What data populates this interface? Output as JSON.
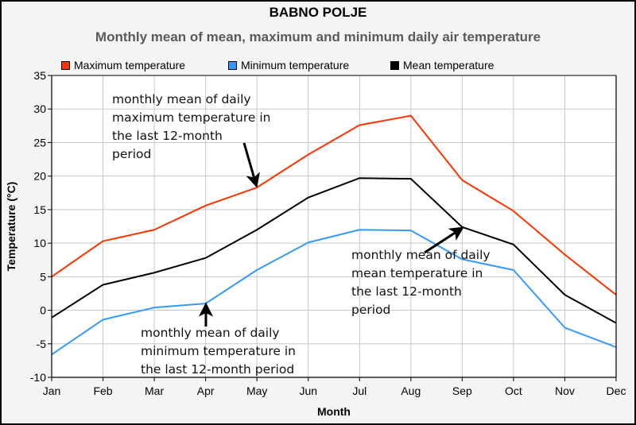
{
  "chart_data": {
    "type": "line",
    "title": "BABNO POLJE",
    "subtitle": "Monthly mean of mean, maximum and minimum daily air temperature",
    "xlabel": "Month",
    "ylabel": "Temperature (°C)",
    "categories": [
      "Jan",
      "Feb",
      "Mar",
      "Apr",
      "May",
      "Jun",
      "Jul",
      "Aug",
      "Sep",
      "Oct",
      "Nov",
      "Dec"
    ],
    "ylim": [
      -10,
      35
    ],
    "yticks": [
      -10,
      -5,
      0,
      5,
      10,
      15,
      20,
      25,
      30,
      35
    ],
    "grid": true,
    "legend_position": "top",
    "series": [
      {
        "name": "Maximum temperature",
        "color": "#ff3300",
        "values": [
          5.0,
          10.3,
          12.0,
          15.6,
          18.3,
          23.2,
          27.6,
          29.0,
          19.4,
          14.8,
          8.3,
          2.3
        ]
      },
      {
        "name": "Minimum temperature",
        "color": "#3399ff",
        "values": [
          -6.6,
          -1.4,
          0.4,
          1.0,
          6.0,
          10.1,
          12.0,
          11.9,
          7.6,
          6.0,
          -2.6,
          -5.5
        ]
      },
      {
        "name": "Mean temperature",
        "color": "#000000",
        "values": [
          -1.1,
          3.8,
          5.6,
          7.8,
          12.0,
          16.8,
          19.7,
          19.6,
          12.4,
          9.8,
          2.3,
          -1.9
        ]
      }
    ],
    "annotations": [
      {
        "text": "monthly mean of daily\nmaximum temperature in\nthe last 12-month\nperiod",
        "target_series": "Maximum temperature",
        "target_month": "May"
      },
      {
        "text": "monthly mean of daily\nmean temperature in\nthe last 12-month\nperiod",
        "target_series": "Mean temperature",
        "target_month": "Sep"
      },
      {
        "text": "monthly mean of daily\nminimum temperature in\nthe last 12-month period",
        "target_series": "Minimum temperature",
        "target_month": "Apr"
      }
    ]
  }
}
